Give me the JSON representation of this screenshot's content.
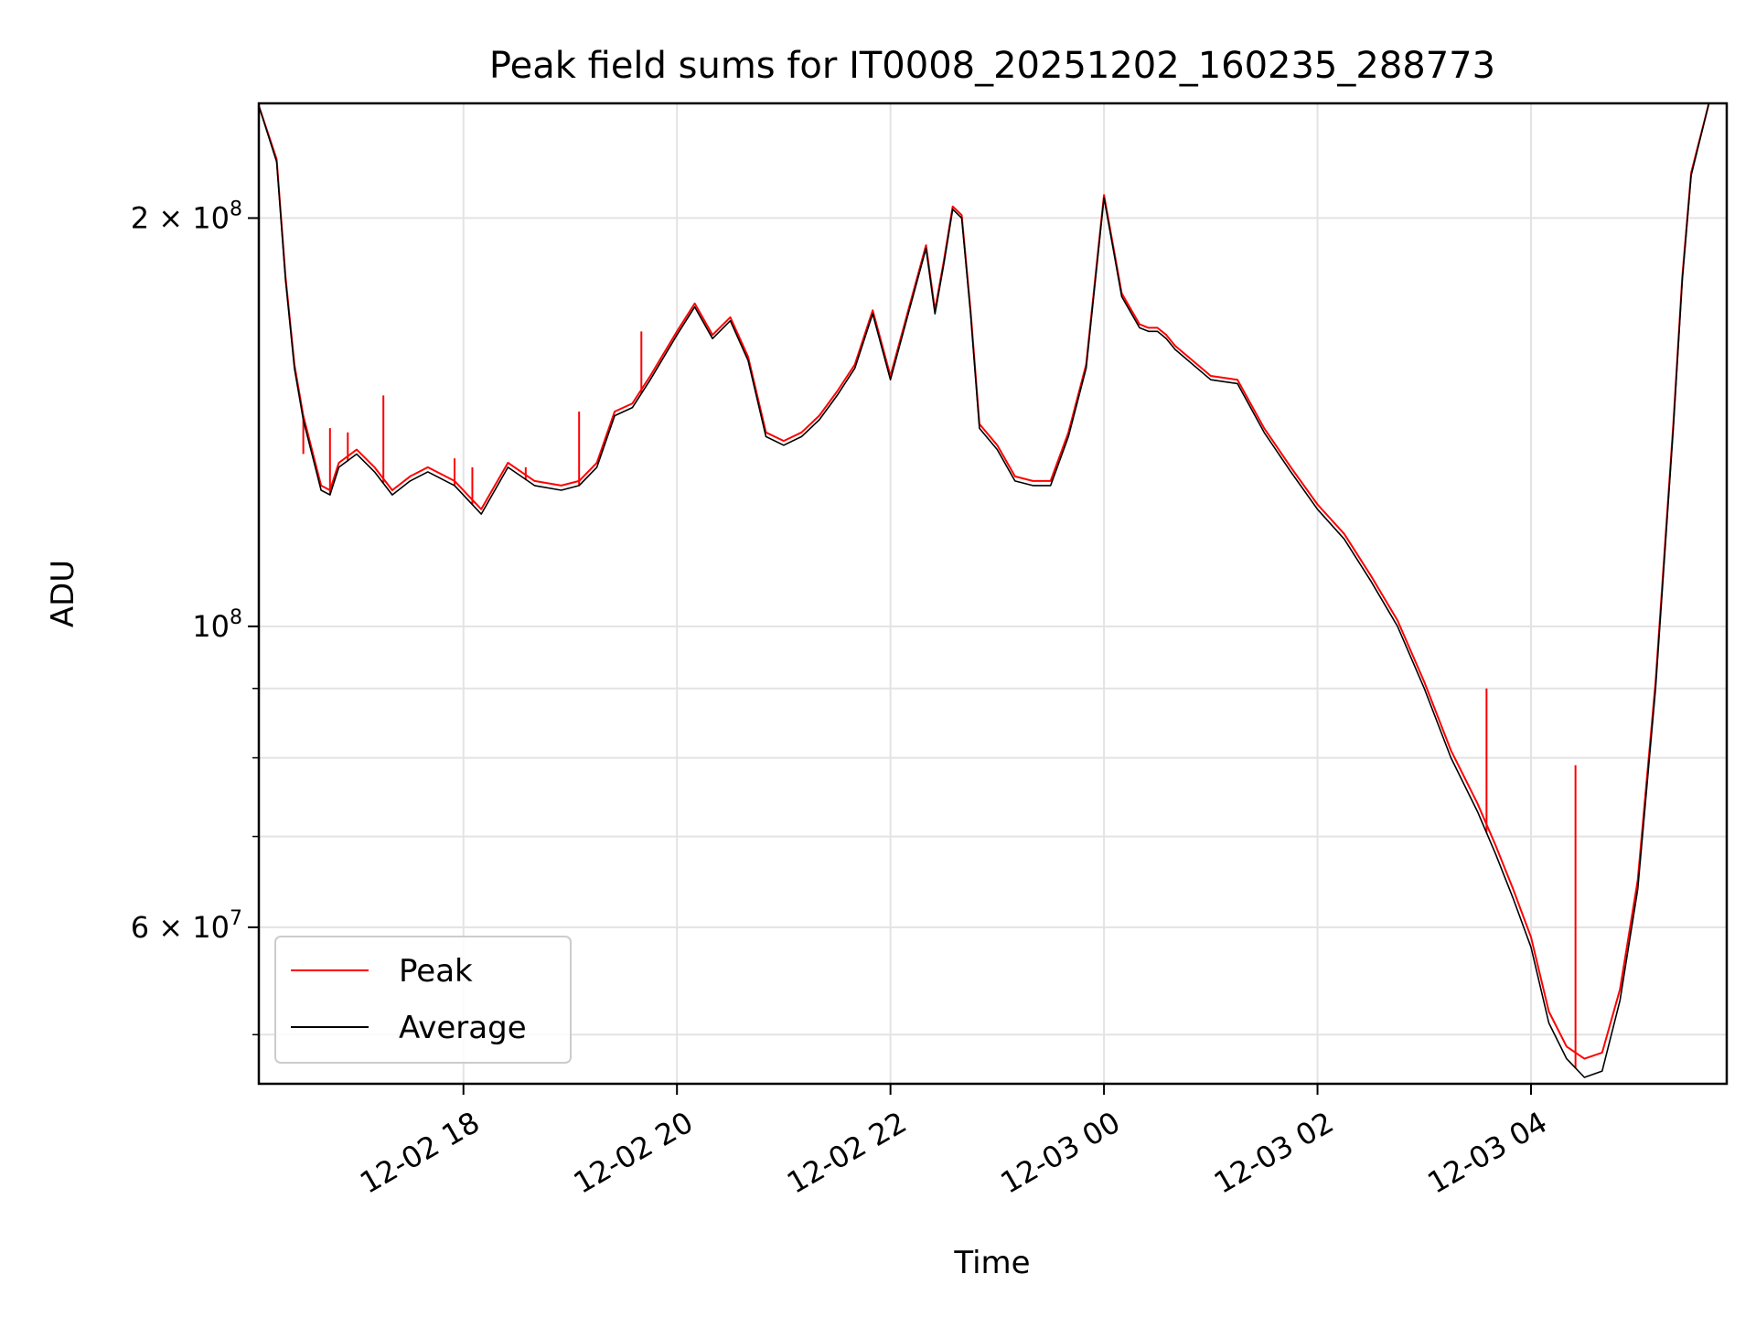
{
  "chart_data": {
    "type": "line",
    "title": "Peak field sums for IT0008_20251202_160235_288773",
    "xlabel": "Time",
    "ylabel": "ADU",
    "y_scale": "log",
    "x_range": [
      "12-02 16:05",
      "12-03 05:50"
    ],
    "ylim": [
      46000000,
      243000000
    ],
    "grid": true,
    "legend_placement": "lower-left",
    "x_ticks": [
      {
        "x": "12-02 18:00",
        "label": "12-02 18"
      },
      {
        "x": "12-02 20:00",
        "label": "12-02 20"
      },
      {
        "x": "12-02 22:00",
        "label": "12-02 22"
      },
      {
        "x": "12-03 00:00",
        "label": "12-03 00"
      },
      {
        "x": "12-03 02:00",
        "label": "12-03 02"
      },
      {
        "x": "12-03 04:00",
        "label": "12-03 04"
      }
    ],
    "y_major_ticks": [
      {
        "y": 60000000,
        "label_base": "6 × 10",
        "label_exp": "7"
      },
      {
        "y": 100000000,
        "label_base": "10",
        "label_exp": "8"
      },
      {
        "y": 200000000,
        "label_base": "2 × 10",
        "label_exp": "8"
      }
    ],
    "y_minor_ticks": [
      50000000,
      70000000,
      80000000,
      90000000
    ],
    "colors": {
      "peak": "#ff0000",
      "average": "#000000"
    },
    "series": [
      {
        "name": "Average",
        "x": [
          "12-02 16:05",
          "12-02 16:15",
          "12-02 16:20",
          "12-02 16:25",
          "12-02 16:30",
          "12-02 16:40",
          "12-02 16:45",
          "12-02 16:50",
          "12-02 17:00",
          "12-02 17:10",
          "12-02 17:20",
          "12-02 17:30",
          "12-02 17:40",
          "12-02 17:55",
          "12-02 18:10",
          "12-02 18:25",
          "12-02 18:40",
          "12-02 18:55",
          "12-02 19:05",
          "12-02 19:15",
          "12-02 19:25",
          "12-02 19:35",
          "12-02 19:45",
          "12-02 20:00",
          "12-02 20:10",
          "12-02 20:20",
          "12-02 20:30",
          "12-02 20:40",
          "12-02 20:50",
          "12-02 21:00",
          "12-02 21:10",
          "12-02 21:20",
          "12-02 21:30",
          "12-02 21:40",
          "12-02 21:50",
          "12-02 22:00",
          "12-02 22:10",
          "12-02 22:20",
          "12-02 22:25",
          "12-02 22:30",
          "12-02 22:35",
          "12-02 22:40",
          "12-02 22:45",
          "12-02 22:50",
          "12-02 23:00",
          "12-02 23:10",
          "12-02 23:20",
          "12-02 23:30",
          "12-02 23:40",
          "12-02 23:50",
          "12-03 00:00",
          "12-03 00:10",
          "12-03 00:20",
          "12-03 00:25",
          "12-03 00:30",
          "12-03 00:35",
          "12-03 00:40",
          "12-03 01:00",
          "12-03 01:15",
          "12-03 01:30",
          "12-03 01:45",
          "12-03 02:00",
          "12-03 02:15",
          "12-03 02:30",
          "12-03 02:45",
          "12-03 03:00",
          "12-03 03:15",
          "12-03 03:30",
          "12-03 03:40",
          "12-03 03:50",
          "12-03 04:00",
          "12-03 04:10",
          "12-03 04:20",
          "12-03 04:30",
          "12-03 04:40",
          "12-03 04:50",
          "12-03 05:00",
          "12-03 05:10",
          "12-03 05:20",
          "12-03 05:25",
          "12-03 05:30",
          "12-03 05:40",
          "12-03 05:50"
        ],
        "values": [
          242000000,
          220000000,
          180000000,
          155000000,
          142000000,
          126000000,
          125000000,
          131000000,
          134000000,
          130000000,
          125000000,
          128000000,
          130000000,
          127000000,
          121000000,
          131000000,
          127000000,
          126000000,
          127000000,
          131000000,
          143000000,
          145000000,
          152000000,
          164000000,
          172000000,
          163000000,
          168000000,
          157000000,
          138000000,
          136000000,
          138000000,
          142000000,
          148000000,
          155000000,
          170000000,
          152000000,
          170000000,
          190000000,
          170000000,
          185000000,
          203000000,
          200000000,
          170000000,
          140000000,
          135000000,
          128000000,
          127000000,
          127000000,
          138000000,
          155000000,
          207000000,
          175000000,
          166000000,
          165000000,
          165000000,
          163000000,
          160000000,
          152000000,
          151000000,
          139000000,
          130000000,
          122000000,
          116000000,
          108000000,
          100000000,
          90000000,
          80000000,
          73000000,
          68000000,
          63000000,
          58000000,
          51000000,
          48000000,
          46500000,
          47000000,
          53000000,
          64000000,
          90000000,
          140000000,
          180000000,
          215000000,
          243000000,
          243000000
        ]
      },
      {
        "name": "Peak",
        "x": [
          "12-02 16:05",
          "12-02 16:15",
          "12-02 16:20",
          "12-02 16:25",
          "12-02 16:30",
          "12-02 16:40",
          "12-02 16:45",
          "12-02 16:50",
          "12-02 17:00",
          "12-02 17:10",
          "12-02 17:20",
          "12-02 17:30",
          "12-02 17:40",
          "12-02 17:55",
          "12-02 18:10",
          "12-02 18:25",
          "12-02 18:40",
          "12-02 18:55",
          "12-02 19:05",
          "12-02 19:15",
          "12-02 19:25",
          "12-02 19:35",
          "12-02 19:45",
          "12-02 20:00",
          "12-02 20:10",
          "12-02 20:20",
          "12-02 20:30",
          "12-02 20:40",
          "12-02 20:50",
          "12-02 21:00",
          "12-02 21:10",
          "12-02 21:20",
          "12-02 21:30",
          "12-02 21:40",
          "12-02 21:50",
          "12-02 22:00",
          "12-02 22:10",
          "12-02 22:20",
          "12-02 22:25",
          "12-02 22:30",
          "12-02 22:35",
          "12-02 22:40",
          "12-02 22:45",
          "12-02 22:50",
          "12-02 23:00",
          "12-02 23:10",
          "12-02 23:20",
          "12-02 23:30",
          "12-02 23:40",
          "12-02 23:50",
          "12-03 00:00",
          "12-03 00:10",
          "12-03 00:20",
          "12-03 00:25",
          "12-03 00:30",
          "12-03 00:35",
          "12-03 00:40",
          "12-03 01:00",
          "12-03 01:15",
          "12-03 01:30",
          "12-03 01:45",
          "12-03 02:00",
          "12-03 02:15",
          "12-03 02:30",
          "12-03 02:45",
          "12-03 03:00",
          "12-03 03:15",
          "12-03 03:30",
          "12-03 03:40",
          "12-03 03:50",
          "12-03 04:00",
          "12-03 04:10",
          "12-03 04:20",
          "12-03 04:30",
          "12-03 04:40",
          "12-03 04:50",
          "12-03 05:00",
          "12-03 05:10",
          "12-03 05:20",
          "12-03 05:25",
          "12-03 05:30",
          "12-03 05:40",
          "12-03 05:50"
        ],
        "values": [
          242000000,
          221000000,
          181000000,
          156000000,
          143000000,
          127000000,
          126000000,
          132000000,
          135000000,
          131000000,
          126000000,
          129000000,
          131000000,
          128000000,
          122000000,
          132000000,
          128000000,
          127000000,
          128000000,
          132000000,
          144000000,
          146000000,
          153000000,
          165000000,
          173000000,
          164000000,
          169000000,
          158000000,
          139000000,
          137000000,
          139000000,
          143000000,
          149000000,
          156000000,
          171000000,
          153000000,
          171000000,
          191000000,
          171000000,
          186000000,
          204000000,
          201000000,
          171000000,
          141000000,
          136000000,
          129000000,
          128000000,
          128000000,
          139000000,
          156000000,
          208000000,
          176000000,
          167000000,
          166000000,
          166000000,
          164000000,
          161000000,
          153000000,
          152000000,
          140000000,
          131000000,
          123000000,
          117000000,
          109000000,
          101000000,
          91000000,
          81000000,
          74000000,
          69000000,
          64000000,
          59000000,
          52000000,
          49000000,
          48000000,
          48500000,
          54000000,
          65000000,
          91000000,
          141000000,
          181000000,
          216000000,
          243000000,
          243000000
        ]
      }
    ],
    "peak_spikes": [
      {
        "x": "12-02 16:30",
        "y": 134000000
      },
      {
        "x": "12-02 16:45",
        "y": 140000000
      },
      {
        "x": "12-02 16:55",
        "y": 139000000
      },
      {
        "x": "12-02 17:15",
        "y": 148000000
      },
      {
        "x": "12-02 17:55",
        "y": 133000000
      },
      {
        "x": "12-02 18:05",
        "y": 131000000
      },
      {
        "x": "12-02 18:35",
        "y": 131000000
      },
      {
        "x": "12-02 19:05",
        "y": 144000000
      },
      {
        "x": "12-02 19:40",
        "y": 165000000
      },
      {
        "x": "12-03 03:35",
        "y": 90000000
      },
      {
        "x": "12-03 04:25",
        "y": 79000000
      }
    ],
    "legend": [
      {
        "label": "Peak",
        "color": "#ff0000"
      },
      {
        "label": "Average",
        "color": "#000000"
      }
    ]
  }
}
